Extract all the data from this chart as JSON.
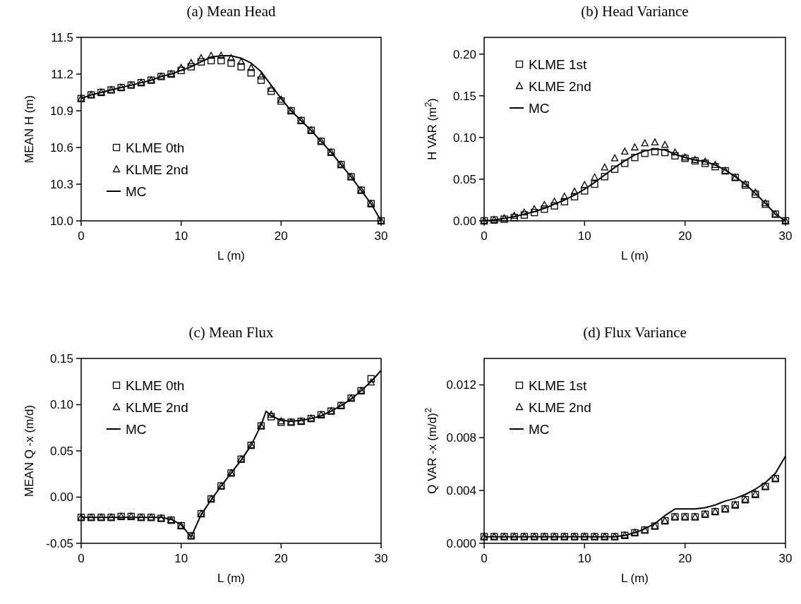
{
  "chart_data": [
    {
      "type": "scatter",
      "title": "(a) Mean Head",
      "xlabel": "L (m)",
      "ylabel": "MEAN H (m)",
      "x": [
        0,
        1,
        2,
        3,
        4,
        5,
        6,
        7,
        8,
        9,
        10,
        11,
        12,
        13,
        14,
        15,
        16,
        17,
        18,
        19,
        20,
        21,
        22,
        23,
        24,
        25,
        26,
        27,
        28,
        29,
        30
      ],
      "xlim": [
        0,
        30
      ],
      "xticks": [
        0,
        10,
        20,
        30
      ],
      "ylim": [
        10,
        11.5
      ],
      "yticks": [
        {
          "value": 10,
          "label": "10.0"
        },
        10.3,
        10.6,
        10.9,
        11.2,
        11.5
      ],
      "legend": "bottom left",
      "grid": false,
      "series": [
        {
          "name": "KLME 0th",
          "type": "scatter",
          "marker": "square",
          "color": "#000000",
          "values": [
            11.0,
            11.03,
            11.05,
            11.07,
            11.09,
            11.11,
            11.13,
            11.15,
            11.18,
            11.2,
            11.23,
            11.26,
            11.3,
            11.31,
            11.31,
            11.29,
            11.26,
            11.21,
            11.15,
            11.06,
            10.98,
            10.9,
            10.82,
            10.74,
            10.65,
            10.56,
            10.46,
            10.36,
            10.25,
            10.14,
            10.0
          ]
        },
        {
          "name": "KLME 2nd",
          "type": "scatter",
          "marker": "triangle",
          "color": "#000000",
          "values": [
            11.0,
            11.03,
            11.05,
            11.07,
            11.09,
            11.11,
            11.13,
            11.15,
            11.18,
            11.2,
            11.25,
            11.29,
            11.33,
            11.35,
            11.35,
            11.33,
            11.3,
            11.25,
            11.18,
            11.08,
            10.99,
            10.9,
            10.82,
            10.74,
            10.65,
            10.56,
            10.46,
            10.36,
            10.25,
            10.14,
            10.0
          ]
        },
        {
          "name": "MC",
          "type": "line",
          "marker": "none",
          "color": "#000000",
          "values": [
            11.0,
            11.03,
            11.05,
            11.07,
            11.09,
            11.11,
            11.13,
            11.15,
            11.18,
            11.2,
            11.23,
            11.26,
            11.3,
            11.34,
            11.35,
            11.35,
            11.33,
            11.29,
            11.22,
            11.11,
            11.0,
            10.9,
            10.82,
            10.74,
            10.65,
            10.56,
            10.46,
            10.36,
            10.25,
            10.14,
            10.0
          ]
        }
      ]
    },
    {
      "type": "scatter",
      "title": "(b) Head Variance",
      "xlabel": "L (m)",
      "ylabel": "H VAR (m$^{2}$)",
      "x": [
        0,
        1,
        2,
        3,
        4,
        5,
        6,
        7,
        8,
        9,
        10,
        11,
        12,
        13,
        14,
        15,
        16,
        17,
        18,
        19,
        20,
        21,
        22,
        23,
        24,
        25,
        26,
        27,
        28,
        29,
        30
      ],
      "xlim": [
        0,
        30
      ],
      "xticks": [
        0,
        10,
        20,
        30
      ],
      "ylim": [
        0,
        0.22
      ],
      "yticks": [
        {
          "value": 0,
          "label": "0.00"
        },
        0.05,
        {
          "value": 0.1,
          "label": "0.10"
        },
        0.15,
        {
          "value": 0.2,
          "label": "0.20"
        }
      ],
      "legend": "top left",
      "grid": false,
      "series": [
        {
          "name": "KLME 1st",
          "type": "scatter",
          "marker": "square",
          "color": "#000000",
          "values": [
            0,
            0.001,
            0.002,
            0.004,
            0.007,
            0.01,
            0.014,
            0.018,
            0.023,
            0.029,
            0.036,
            0.044,
            0.053,
            0.062,
            0.069,
            0.076,
            0.081,
            0.083,
            0.082,
            0.078,
            0.075,
            0.072,
            0.069,
            0.065,
            0.06,
            0.052,
            0.043,
            0.032,
            0.02,
            0.008,
            0
          ]
        },
        {
          "name": "KLME 2nd",
          "type": "scatter",
          "marker": "triangle",
          "color": "#000000",
          "values": [
            0,
            0.001,
            0.003,
            0.006,
            0.01,
            0.014,
            0.019,
            0.023,
            0.029,
            0.035,
            0.043,
            0.052,
            0.064,
            0.075,
            0.083,
            0.088,
            0.093,
            0.094,
            0.091,
            0.082,
            0.076,
            0.073,
            0.071,
            0.067,
            0.06,
            0.052,
            0.044,
            0.034,
            0.021,
            0.008,
            0
          ]
        },
        {
          "name": "MC",
          "type": "line",
          "marker": "none",
          "color": "#000000",
          "values": [
            0,
            0.001,
            0.003,
            0.005,
            0.008,
            0.011,
            0.015,
            0.02,
            0.025,
            0.031,
            0.038,
            0.046,
            0.055,
            0.064,
            0.072,
            0.079,
            0.084,
            0.086,
            0.085,
            0.08,
            0.076,
            0.073,
            0.071,
            0.067,
            0.061,
            0.053,
            0.044,
            0.033,
            0.021,
            0.008,
            0
          ]
        }
      ]
    },
    {
      "type": "scatter",
      "title": "(c) Mean Flux",
      "xlabel": "L (m)",
      "ylabel": "MEAN Q -x (m/d)",
      "x": [
        0,
        1,
        2,
        3,
        4,
        5,
        6,
        7,
        8,
        9,
        10,
        11,
        12,
        13,
        14,
        15,
        16,
        17,
        18,
        19,
        20,
        21,
        22,
        23,
        24,
        25,
        26,
        27,
        28,
        29
      ],
      "xlim": [
        0,
        30
      ],
      "xticks": [
        0,
        10,
        20,
        30
      ],
      "ylim": [
        -0.05,
        0.15
      ],
      "yticks": [
        -0.05,
        {
          "value": 0,
          "label": "0.00"
        },
        0.05,
        {
          "value": 0.1,
          "label": "0.10"
        },
        0.15
      ],
      "legend": "top left",
      "grid": false,
      "series": [
        {
          "name": "KLME 0th",
          "type": "scatter",
          "marker": "square",
          "color": "#000000",
          "values": [
            -0.022,
            -0.022,
            -0.022,
            -0.022,
            -0.021,
            -0.021,
            -0.022,
            -0.022,
            -0.023,
            -0.025,
            -0.031,
            -0.042,
            -0.018,
            -0.002,
            0.012,
            0.026,
            0.041,
            0.056,
            0.077,
            0.087,
            0.081,
            0.081,
            0.082,
            0.085,
            0.089,
            0.093,
            0.099,
            0.107,
            0.115,
            0.128
          ]
        },
        {
          "name": "KLME 2nd",
          "type": "scatter",
          "marker": "triangle",
          "color": "#000000",
          "values": [
            -0.022,
            -0.022,
            -0.022,
            -0.022,
            -0.021,
            -0.021,
            -0.022,
            -0.022,
            -0.023,
            -0.025,
            -0.031,
            -0.042,
            -0.018,
            -0.002,
            0.012,
            0.026,
            0.041,
            0.056,
            0.077,
            0.089,
            0.082,
            0.081,
            0.082,
            0.085,
            0.089,
            0.093,
            0.099,
            0.107,
            0.115,
            0.124
          ]
        },
        {
          "name": "MC",
          "type": "line",
          "marker": "none",
          "color": "#000000",
          "x": [
            0,
            1,
            2,
            3,
            4,
            5,
            6,
            7,
            8,
            9,
            10,
            11,
            12,
            13,
            14,
            15,
            16,
            17,
            18,
            18.5,
            19,
            20,
            21,
            22,
            23,
            24,
            25,
            26,
            27,
            28,
            29,
            30
          ],
          "values": [
            -0.022,
            -0.022,
            -0.022,
            -0.022,
            -0.022,
            -0.022,
            -0.022,
            -0.022,
            -0.022,
            -0.024,
            -0.03,
            -0.043,
            -0.019,
            -0.003,
            0.012,
            0.026,
            0.04,
            0.056,
            0.078,
            0.093,
            0.088,
            0.083,
            0.082,
            0.083,
            0.085,
            0.088,
            0.093,
            0.099,
            0.106,
            0.115,
            0.125,
            0.137
          ]
        }
      ]
    },
    {
      "type": "scatter",
      "title": "(d) Flux Variance",
      "xlabel": "L (m)",
      "ylabel": "Q VAR -x (m/d)$^{2}$",
      "x": [
        0,
        1,
        2,
        3,
        4,
        5,
        6,
        7,
        8,
        9,
        10,
        11,
        12,
        13,
        14,
        15,
        16,
        17,
        18,
        19,
        20,
        21,
        22,
        23,
        24,
        25,
        26,
        27,
        28,
        29
      ],
      "xlim": [
        0,
        30
      ],
      "xticks": [
        0,
        10,
        20,
        30
      ],
      "ylim": [
        0,
        0.014
      ],
      "yticks": [
        {
          "value": 0,
          "label": "0.000"
        },
        0.004,
        0.008,
        0.012
      ],
      "legend": "top left",
      "grid": false,
      "series": [
        {
          "name": "KLME 1st",
          "type": "scatter",
          "marker": "square",
          "color": "#000000",
          "values": [
            0.0005,
            0.0005,
            0.0005,
            0.0005,
            0.0005,
            0.0005,
            0.0005,
            0.0005,
            0.0005,
            0.0005,
            0.0005,
            0.0005,
            0.0005,
            0.0005,
            0.0006,
            0.0008,
            0.001,
            0.0013,
            0.0017,
            0.002,
            0.002,
            0.002,
            0.0022,
            0.0024,
            0.0026,
            0.0029,
            0.0033,
            0.0037,
            0.0043,
            0.0049
          ]
        },
        {
          "name": "KLME 2nd",
          "type": "scatter",
          "marker": "triangle",
          "color": "#000000",
          "values": [
            0.0005,
            0.0005,
            0.0005,
            0.0005,
            0.0005,
            0.0005,
            0.0005,
            0.0005,
            0.0005,
            0.0005,
            0.0005,
            0.0005,
            0.0005,
            0.0005,
            0.0006,
            0.0008,
            0.001,
            0.0013,
            0.0017,
            0.002,
            0.002,
            0.002,
            0.0022,
            0.0024,
            0.0026,
            0.0029,
            0.0033,
            0.0037,
            0.0043,
            0.0049
          ]
        },
        {
          "name": "MC",
          "type": "line",
          "marker": "none",
          "color": "#000000",
          "x": [
            0,
            1,
            2,
            3,
            4,
            5,
            6,
            7,
            8,
            9,
            10,
            11,
            12,
            13,
            14,
            15,
            16,
            17,
            18,
            19,
            20,
            21,
            22,
            23,
            24,
            25,
            26,
            27,
            28,
            29,
            30
          ],
          "values": [
            0.0005,
            0.0005,
            0.0005,
            0.0005,
            0.0005,
            0.0005,
            0.0005,
            0.0005,
            0.0005,
            0.0005,
            0.0005,
            0.0005,
            0.0005,
            0.0005,
            0.0006,
            0.0008,
            0.0011,
            0.0015,
            0.0021,
            0.0026,
            0.0026,
            0.0026,
            0.0027,
            0.0029,
            0.0032,
            0.0034,
            0.0037,
            0.0041,
            0.0046,
            0.0053,
            0.0066
          ]
        }
      ]
    }
  ]
}
